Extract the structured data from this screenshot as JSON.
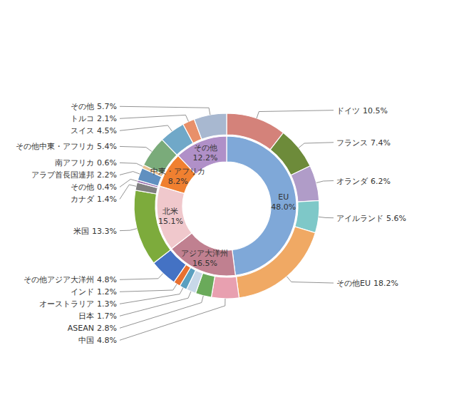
{
  "chart_data": {
    "type": "pie",
    "data_labels": true,
    "series": [
      {
        "categories": [
          "EU",
          "アジア大洋州",
          "北米",
          "中東・アフリカ",
          "その他"
        ],
        "values": [
          48.0,
          16.5,
          15.1,
          8.2,
          12.2
        ],
        "value_labels": [
          "48.0%",
          "16.5%",
          "15.1%",
          "8.2%",
          "12.2%"
        ],
        "colors": [
          "#7fa8d8",
          "#c08090",
          "#f0c8cc",
          "#f08030",
          "#b090c8"
        ]
      },
      {
        "categories": [
          "ドイツ",
          "フランス",
          "オランダ",
          "アイルランド",
          "その他EU",
          "中国",
          "ASEAN",
          "日本",
          "オーストラリア",
          "インド",
          "その他アジア大洋州",
          "米国",
          "カナダ",
          "その他",
          "アラブ首長国連邦",
          "南アフリカ",
          "その他中東・アフリカ",
          "スイス",
          "トルコ",
          "その他"
        ],
        "values": [
          10.5,
          7.4,
          6.2,
          5.6,
          18.2,
          4.8,
          2.8,
          1.7,
          1.3,
          1.2,
          4.8,
          13.3,
          1.4,
          0.4,
          2.2,
          0.6,
          5.4,
          4.5,
          2.1,
          5.7
        ],
        "value_labels": [
          "10.5%",
          "7.4%",
          "6.2%",
          "5.6%",
          "18.2%",
          "4.8%",
          "2.8%",
          "1.7%",
          "1.3%",
          "1.2%",
          "4.8%",
          "13.3%",
          "1.4%",
          "0.4%",
          "2.2%",
          "0.6%",
          "5.4%",
          "4.5%",
          "2.1%",
          "5.7%"
        ],
        "colors": [
          "#d4827a",
          "#6d8b3a",
          "#b09cc8",
          "#7ec8c8",
          "#f0a964",
          "#e8a0b0",
          "#6aaa5a",
          "#c8d8e8",
          "#5ba0c0",
          "#e87030",
          "#4472c4",
          "#7dab3c",
          "#808080",
          "#9b72b0",
          "#6090c0",
          "#e8c090",
          "#7aab7a",
          "#70a8c8",
          "#e8906a",
          "#a8b8d0"
        ]
      }
    ]
  }
}
